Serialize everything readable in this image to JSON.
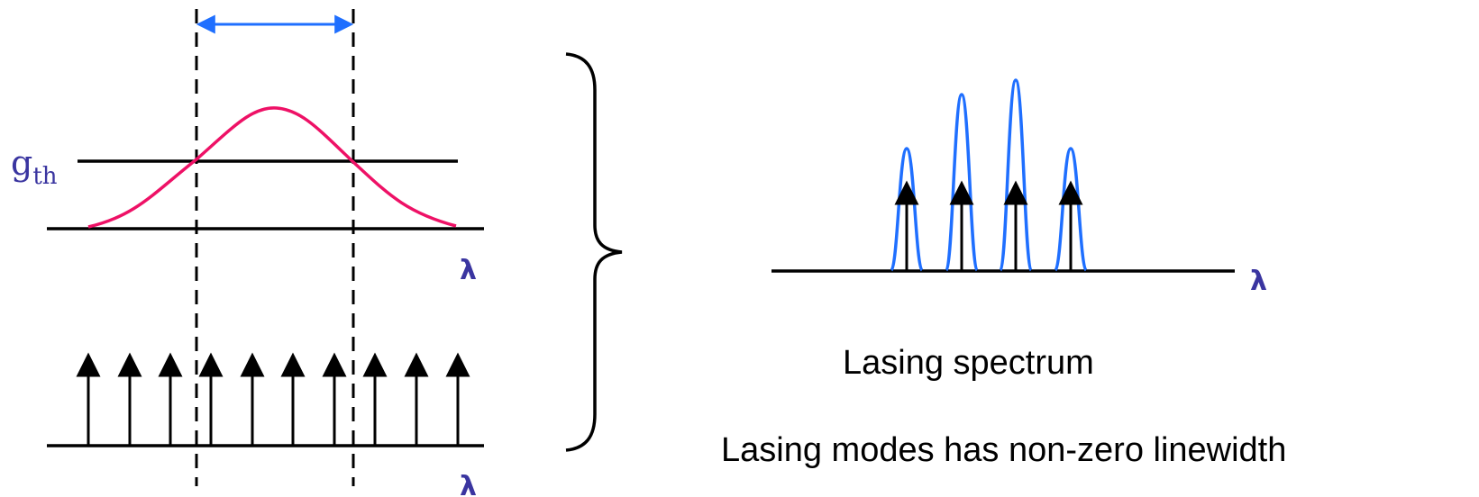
{
  "labels": {
    "gth_main": "g",
    "gth_sub": "th",
    "lambda": "λ",
    "lasing_spectrum": "Lasing spectrum",
    "linewidth_note": "Lasing modes has non-zero linewidth"
  },
  "colors": {
    "gain_curve": "#ee1166",
    "spectrum": "#1f6fff",
    "arrow_blue": "#1f6fff",
    "label": "#3a35a0",
    "ink": "#000000"
  },
  "cavity_modes_count": 10,
  "lasing_modes_count": 4,
  "lasing_mode_relative_heights": [
    0.55,
    0.82,
    0.94,
    0.55
  ]
}
